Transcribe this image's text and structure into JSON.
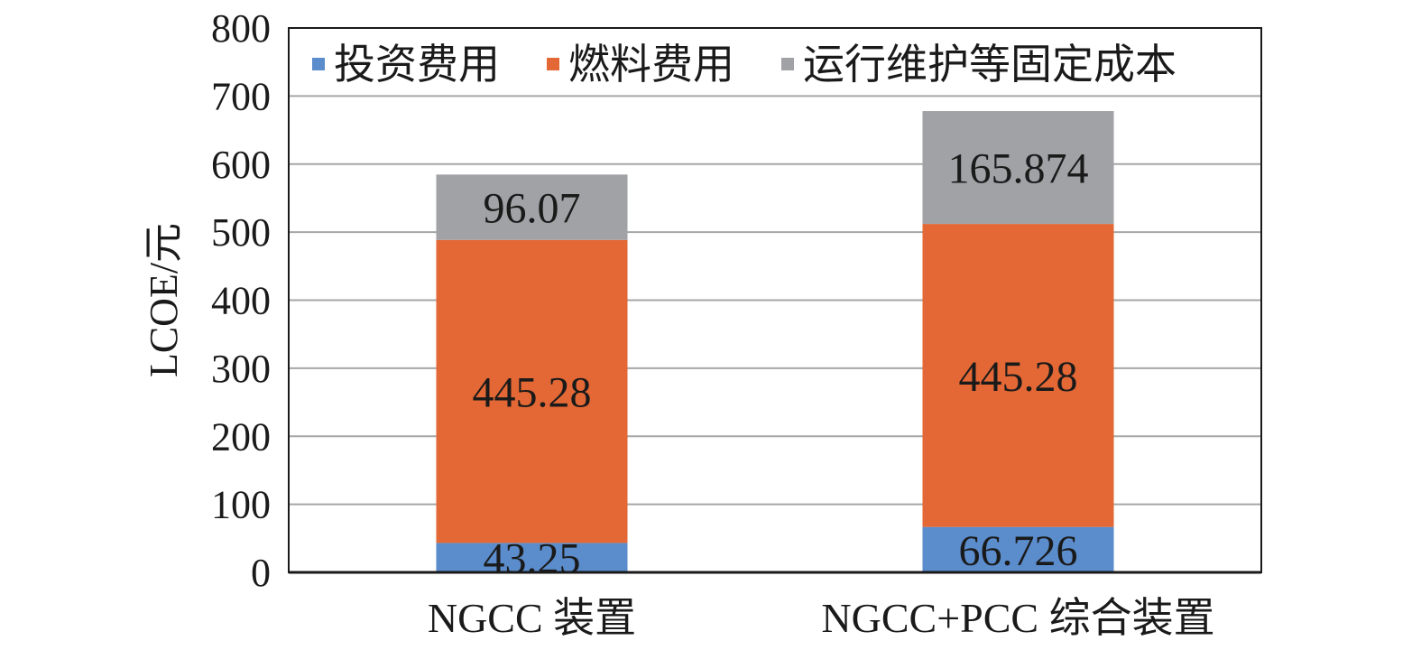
{
  "chart_data": {
    "type": "bar",
    "stacked": true,
    "categories": [
      "NGCC 装置",
      "NGCC+PCC 综合装置"
    ],
    "series": [
      {
        "name": "投资费用",
        "values": [
          43.25,
          66.726
        ],
        "labels": [
          "43.25",
          "66.726"
        ],
        "color": "#5b8ccb"
      },
      {
        "name": "燃料费用",
        "values": [
          445.28,
          445.28
        ],
        "labels": [
          "445.28",
          "445.28"
        ],
        "color": "#e36835"
      },
      {
        "name": "运行维护等固定成本",
        "values": [
          96.07,
          165.874
        ],
        "labels": [
          "96.07",
          "165.874"
        ],
        "color": "#a1a2a6"
      }
    ],
    "title": "",
    "xlabel": "",
    "ylabel": "LCOE/元",
    "ylim": [
      0,
      800
    ],
    "yticks": [
      0,
      100,
      200,
      300,
      400,
      500,
      600,
      700,
      800
    ],
    "grid": true,
    "legend": "top"
  }
}
